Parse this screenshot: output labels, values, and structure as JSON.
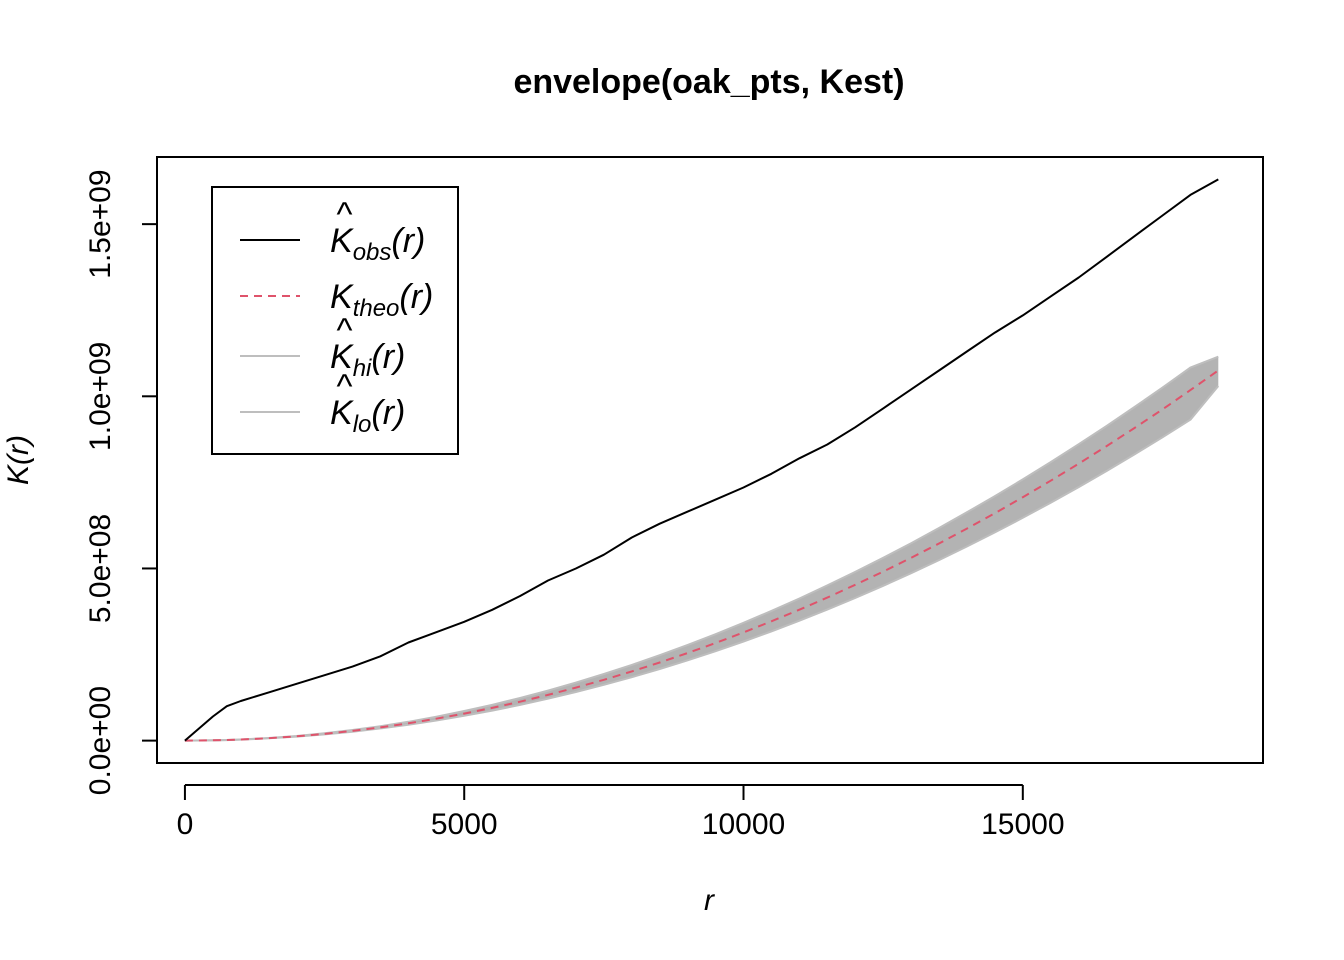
{
  "chart_data": {
    "type": "area",
    "title": "envelope(oak_pts, Kest)",
    "xlabel": "r",
    "ylabel": "K(r)",
    "xlim": [
      -500,
      19300
    ],
    "ylim": [
      -65000000,
      1695000000
    ],
    "x_ticks": [
      0,
      5000,
      10000,
      15000
    ],
    "x_tick_labels": [
      "0",
      "5000",
      "10000",
      "15000"
    ],
    "y_ticks": [
      0,
      500000000,
      1000000000,
      1500000000
    ],
    "y_tick_labels": [
      "0.0e+00",
      "5.0e+08",
      "1.0e+09",
      "1.5e+09"
    ],
    "legend_position": "top-left",
    "legend": [
      {
        "key": "obs",
        "base": "K",
        "hat": "^",
        "sub": "obs",
        "arg": "(r)",
        "color": "#000000",
        "dash": "solid"
      },
      {
        "key": "theo",
        "base": "K",
        "hat": "",
        "sub": "theo",
        "arg": "(r)",
        "color": "#DF536B",
        "dash": "dashed"
      },
      {
        "key": "hi",
        "base": "K",
        "hat": "^",
        "sub": "hi",
        "arg": "(r)",
        "color": "#BEBEBE",
        "dash": "solid"
      },
      {
        "key": "lo",
        "base": "K",
        "hat": "^",
        "sub": "lo",
        "arg": "(r)",
        "color": "#BEBEBE",
        "dash": "solid"
      }
    ],
    "x": [
      0,
      500,
      750,
      1000,
      1500,
      2000,
      2500,
      3000,
      3500,
      4000,
      4500,
      5000,
      5500,
      6000,
      6500,
      7000,
      7500,
      8000,
      8500,
      9000,
      9500,
      10000,
      10500,
      11000,
      11500,
      12000,
      12500,
      13000,
      13500,
      14000,
      14500,
      15000,
      15500,
      16000,
      16500,
      17000,
      17500,
      18000,
      18500
    ],
    "series": [
      {
        "name": "obs",
        "color": "#000000",
        "values": [
          0,
          70000000,
          100000000,
          115000000,
          140000000,
          165000000,
          190000000,
          215000000,
          245000000,
          285000000,
          315000000,
          345000000,
          380000000,
          420000000,
          465000000,
          500000000,
          540000000,
          590000000,
          630000000,
          665000000,
          700000000,
          735000000,
          775000000,
          820000000,
          860000000,
          910000000,
          965000000,
          1020000000,
          1075000000,
          1130000000,
          1185000000,
          1235000000,
          1290000000,
          1345000000,
          1405000000,
          1465000000,
          1525000000,
          1585000000,
          1630000000
        ]
      },
      {
        "name": "theo",
        "color": "#DF536B",
        "values": [
          0,
          790000,
          1770000,
          3140000,
          7070000,
          12570000,
          19630000,
          28270000,
          38480000,
          50270000,
          63620000,
          78540000,
          95030000,
          113100000,
          132700000,
          153900000,
          176700000,
          201100000,
          227000000,
          254500000,
          283500000,
          314200000,
          346400000,
          380100000,
          415500000,
          452400000,
          490900000,
          530900000,
          572600000,
          615800000,
          660500000,
          706900000,
          754800000,
          804200000,
          855300000,
          907900000,
          962100000,
          1017900000,
          1075200000
        ]
      },
      {
        "name": "hi",
        "color": "#BEBEBE",
        "values": [
          0,
          800000,
          1800000,
          3300000,
          7500000,
          13500000,
          21200000,
          30700000,
          41900000,
          54800000,
          69500000,
          85900000,
          104000000,
          123900000,
          145400000,
          168600000,
          193500000,
          220000000,
          248100000,
          277900000,
          309200000,
          342200000,
          376800000,
          412900000,
          450700000,
          490000000,
          530900000,
          573400000,
          617400000,
          663000000,
          710100000,
          758800000,
          809000000,
          860800000,
          914100000,
          969000000,
          1025400000,
          1083300000,
          1115000000
        ]
      },
      {
        "name": "lo",
        "color": "#BEBEBE",
        "values": [
          0,
          700000,
          1650000,
          2900000,
          6600000,
          11700000,
          18200000,
          26000000,
          35400000,
          46200000,
          58400000,
          72100000,
          87200000,
          103700000,
          121700000,
          141100000,
          162000000,
          184300000,
          208000000,
          233200000,
          259800000,
          287900000,
          317300000,
          348200000,
          380500000,
          414300000,
          449500000,
          486100000,
          524200000,
          563700000,
          604700000,
          647100000,
          691000000,
          736300000,
          783000000,
          831200000,
          880800000,
          931900000,
          1030000000
        ]
      }
    ]
  }
}
